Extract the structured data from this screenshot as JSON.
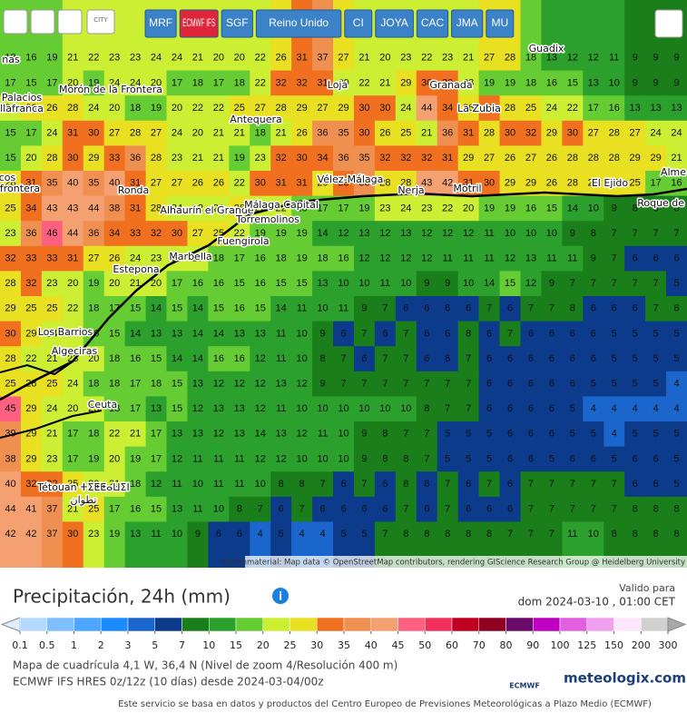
{
  "toolbar": {
    "city": "CITY",
    "models": [
      "MRF",
      "ECMWF IFS",
      "SGF",
      "Reino Unido",
      "CI",
      "JOYA",
      "CAC",
      "JMA",
      "MU"
    ]
  },
  "map": {
    "grid": [
      [
        18,
        16,
        19,
        21,
        22,
        23,
        23,
        24,
        24,
        21,
        20,
        20,
        22,
        26,
        31,
        37,
        27,
        21,
        20,
        23,
        22,
        23,
        21,
        27,
        28,
        18,
        13,
        12,
        12,
        11,
        9,
        9,
        9
      ],
      [
        17,
        15,
        17,
        20,
        19,
        24,
        24,
        20,
        17,
        18,
        17,
        18,
        22,
        32,
        32,
        31,
        20,
        22,
        21,
        29,
        30,
        30,
        23,
        19,
        19,
        18,
        16,
        15,
        13,
        10,
        9,
        9,
        9
      ],
      [
        21,
        26,
        26,
        28,
        24,
        20,
        18,
        19,
        20,
        22,
        22,
        25,
        27,
        28,
        29,
        27,
        29,
        30,
        30,
        24,
        44,
        34,
        26,
        30,
        28,
        25,
        24,
        22,
        17,
        16,
        13,
        13,
        13
      ],
      [
        15,
        17,
        24,
        31,
        30,
        27,
        28,
        27,
        24,
        20,
        21,
        21,
        18,
        21,
        26,
        36,
        35,
        30,
        26,
        25,
        21,
        36,
        31,
        28,
        30,
        32,
        29,
        30,
        27,
        28,
        27,
        24,
        24
      ],
      [
        15,
        20,
        28,
        30,
        29,
        33,
        36,
        28,
        23,
        21,
        21,
        19,
        23,
        32,
        30,
        34,
        36,
        35,
        32,
        32,
        32,
        31,
        29,
        27,
        26,
        27,
        26,
        28,
        28,
        28,
        29,
        29,
        21
      ],
      [
        28,
        31,
        35,
        40,
        35,
        40,
        31,
        27,
        27,
        26,
        26,
        22,
        30,
        31,
        31,
        29,
        33,
        36,
        28,
        28,
        43,
        42,
        31,
        30,
        29,
        29,
        26,
        28,
        26,
        29,
        25,
        17,
        16
      ],
      [
        25,
        34,
        43,
        43,
        44,
        38,
        31,
        28,
        24,
        22,
        21,
        26,
        22,
        22,
        18,
        17,
        17,
        19,
        23,
        24,
        23,
        22,
        20,
        19,
        19,
        16,
        15,
        14,
        10,
        9,
        8,
        8,
        8
      ],
      [
        23,
        36,
        46,
        44,
        36,
        34,
        33,
        32,
        30,
        27,
        25,
        22,
        19,
        19,
        19,
        14,
        12,
        13,
        12,
        13,
        12,
        12,
        12,
        11,
        10,
        10,
        10,
        9,
        8,
        7,
        7,
        7,
        7
      ],
      [
        32,
        33,
        33,
        31,
        27,
        26,
        24,
        23,
        20,
        21,
        18,
        17,
        16,
        18,
        19,
        18,
        16,
        12,
        12,
        12,
        12,
        11,
        11,
        11,
        12,
        13,
        11,
        11,
        9,
        7,
        6,
        6,
        6
      ],
      [
        28,
        32,
        23,
        20,
        19,
        20,
        21,
        20,
        17,
        16,
        16,
        15,
        16,
        15,
        15,
        13,
        10,
        10,
        11,
        10,
        9,
        9,
        10,
        14,
        15,
        12,
        9,
        7,
        7,
        7,
        7,
        7,
        5
      ],
      [
        29,
        25,
        25,
        22,
        18,
        17,
        15,
        14,
        15,
        14,
        15,
        16,
        15,
        14,
        11,
        10,
        11,
        9,
        7,
        6,
        6,
        6,
        6,
        7,
        6,
        7,
        7,
        8,
        6,
        6,
        6,
        7,
        8
      ],
      [
        30,
        29,
        24,
        24,
        16,
        15,
        14,
        13,
        13,
        14,
        14,
        13,
        13,
        11,
        10,
        9,
        6,
        7,
        6,
        7,
        6,
        6,
        8,
        6,
        7,
        6,
        6,
        6,
        6,
        5,
        5,
        5,
        5
      ],
      [
        28,
        22,
        21,
        23,
        20,
        18,
        16,
        15,
        14,
        14,
        16,
        16,
        12,
        11,
        10,
        8,
        7,
        6,
        7,
        7,
        6,
        6,
        7,
        6,
        6,
        6,
        6,
        6,
        6,
        5,
        5,
        5,
        5
      ],
      [
        25,
        28,
        25,
        24,
        18,
        18,
        17,
        18,
        15,
        13,
        12,
        12,
        12,
        13,
        12,
        9,
        7,
        7,
        7,
        7,
        7,
        7,
        7,
        6,
        6,
        6,
        6,
        6,
        5,
        5,
        5,
        5,
        4
      ],
      [
        45,
        29,
        24,
        20,
        23,
        18,
        17,
        13,
        15,
        12,
        13,
        13,
        12,
        11,
        10,
        10,
        10,
        10,
        10,
        10,
        8,
        7,
        7,
        6,
        6,
        6,
        6,
        5,
        4,
        4,
        4,
        4,
        4
      ],
      [
        39,
        29,
        21,
        17,
        18,
        22,
        21,
        17,
        13,
        13,
        12,
        13,
        14,
        13,
        12,
        11,
        10,
        9,
        8,
        7,
        7,
        5,
        5,
        5,
        6,
        6,
        6,
        5,
        5,
        4,
        5,
        5,
        5
      ],
      [
        38,
        29,
        23,
        17,
        19,
        20,
        19,
        17,
        12,
        11,
        11,
        11,
        12,
        12,
        10,
        10,
        10,
        9,
        8,
        8,
        7,
        5,
        5,
        5,
        6,
        6,
        5,
        6,
        6,
        5,
        6,
        6,
        5
      ],
      [
        40,
        32,
        32,
        25,
        20,
        21,
        18,
        12,
        11,
        10,
        11,
        11,
        10,
        8,
        8,
        7,
        6,
        7,
        6,
        8,
        6,
        7,
        6,
        7,
        6,
        7,
        7,
        7,
        7,
        7,
        6,
        6,
        5
      ],
      [
        44,
        41,
        37,
        21,
        25,
        17,
        16,
        15,
        13,
        11,
        10,
        8,
        7,
        6,
        7,
        6,
        6,
        6,
        6,
        7,
        6,
        7,
        6,
        6,
        6,
        7,
        7,
        7,
        7,
        7,
        8,
        8,
        8
      ],
      [
        42,
        42,
        37,
        30,
        23,
        19,
        13,
        11,
        10,
        9,
        6,
        6,
        4,
        5,
        4,
        4,
        5,
        5,
        7,
        8,
        8,
        8,
        8,
        8,
        7,
        7,
        7,
        11,
        10,
        8,
        8,
        8,
        8
      ]
    ],
    "places": [
      "nas",
      "Guadix",
      "Morón de la Frontera",
      "Palacios",
      "llafranca",
      "Loja",
      "Granada",
      "La Zubia",
      "Antequera",
      "cos",
      "frontera",
      "Ronda",
      "Vélez-Málaga",
      "Nerja",
      "Motril",
      "El Ejido",
      "Alme",
      "Roque de Ma",
      "Alhaurín el Grande",
      "Málaga Capital",
      "Torremolinos",
      "Fuengirola",
      "Marbella",
      "Estepona",
      "Los Barrios",
      "Algeciras",
      "Ceuta",
      "Tétouan ⵜⵉⵟⵟⴰⵡⵉⵏ",
      "تطوان"
    ],
    "attribution": "Kartenmaterial: Map data © OpenStreetMap contributors, rendering GIScience Research Group @ Heidelberg University"
  },
  "legend": {
    "title": "Precipitación, 24h (mm)",
    "valid_label": "Valido para",
    "valid_time": "dom 2024-03-10 , 01:00 CET",
    "ticks": [
      0.1,
      0.5,
      1,
      2,
      3,
      5,
      7,
      10,
      15,
      20,
      25,
      30,
      35,
      40,
      45,
      50,
      60,
      70,
      80,
      90,
      100,
      125,
      150,
      200,
      300
    ],
    "below_color": "#dfeeff",
    "above_color": "#a8a8a8",
    "colors": [
      "#b3d9ff",
      "#80bfff",
      "#4da6ff",
      "#1a8cff",
      "#1a66cc",
      "#0d3b8c",
      "#1a7f1a",
      "#2ca02c",
      "#66cc33",
      "#ccee33",
      "#e8e020",
      "#f07020",
      "#f09050",
      "#f4a070",
      "#ff6080",
      "#f0305a",
      "#c00020",
      "#900020",
      "#6a0a6a",
      "#c000c0",
      "#e060e0",
      "#f0a0f0",
      "#ffe6ff",
      "#d0d0d0"
    ]
  },
  "footer": {
    "grid_info": "Mapa de cuadrícula 4,1 W, 36,4 N (Nivel de zoom 4/Resolución 400 m)",
    "model_info": "ECMWF IFS HRES 0z/12z (10 días) desde 2024-03-04/00z",
    "ecmwf": "ECMWF",
    "brand": "meteologix.com",
    "disclaimer": "Este servicio se basa en datos y productos del Centro Europeo de Previsiones Meteorológicas a Plazo Medio (ECMWF)"
  }
}
